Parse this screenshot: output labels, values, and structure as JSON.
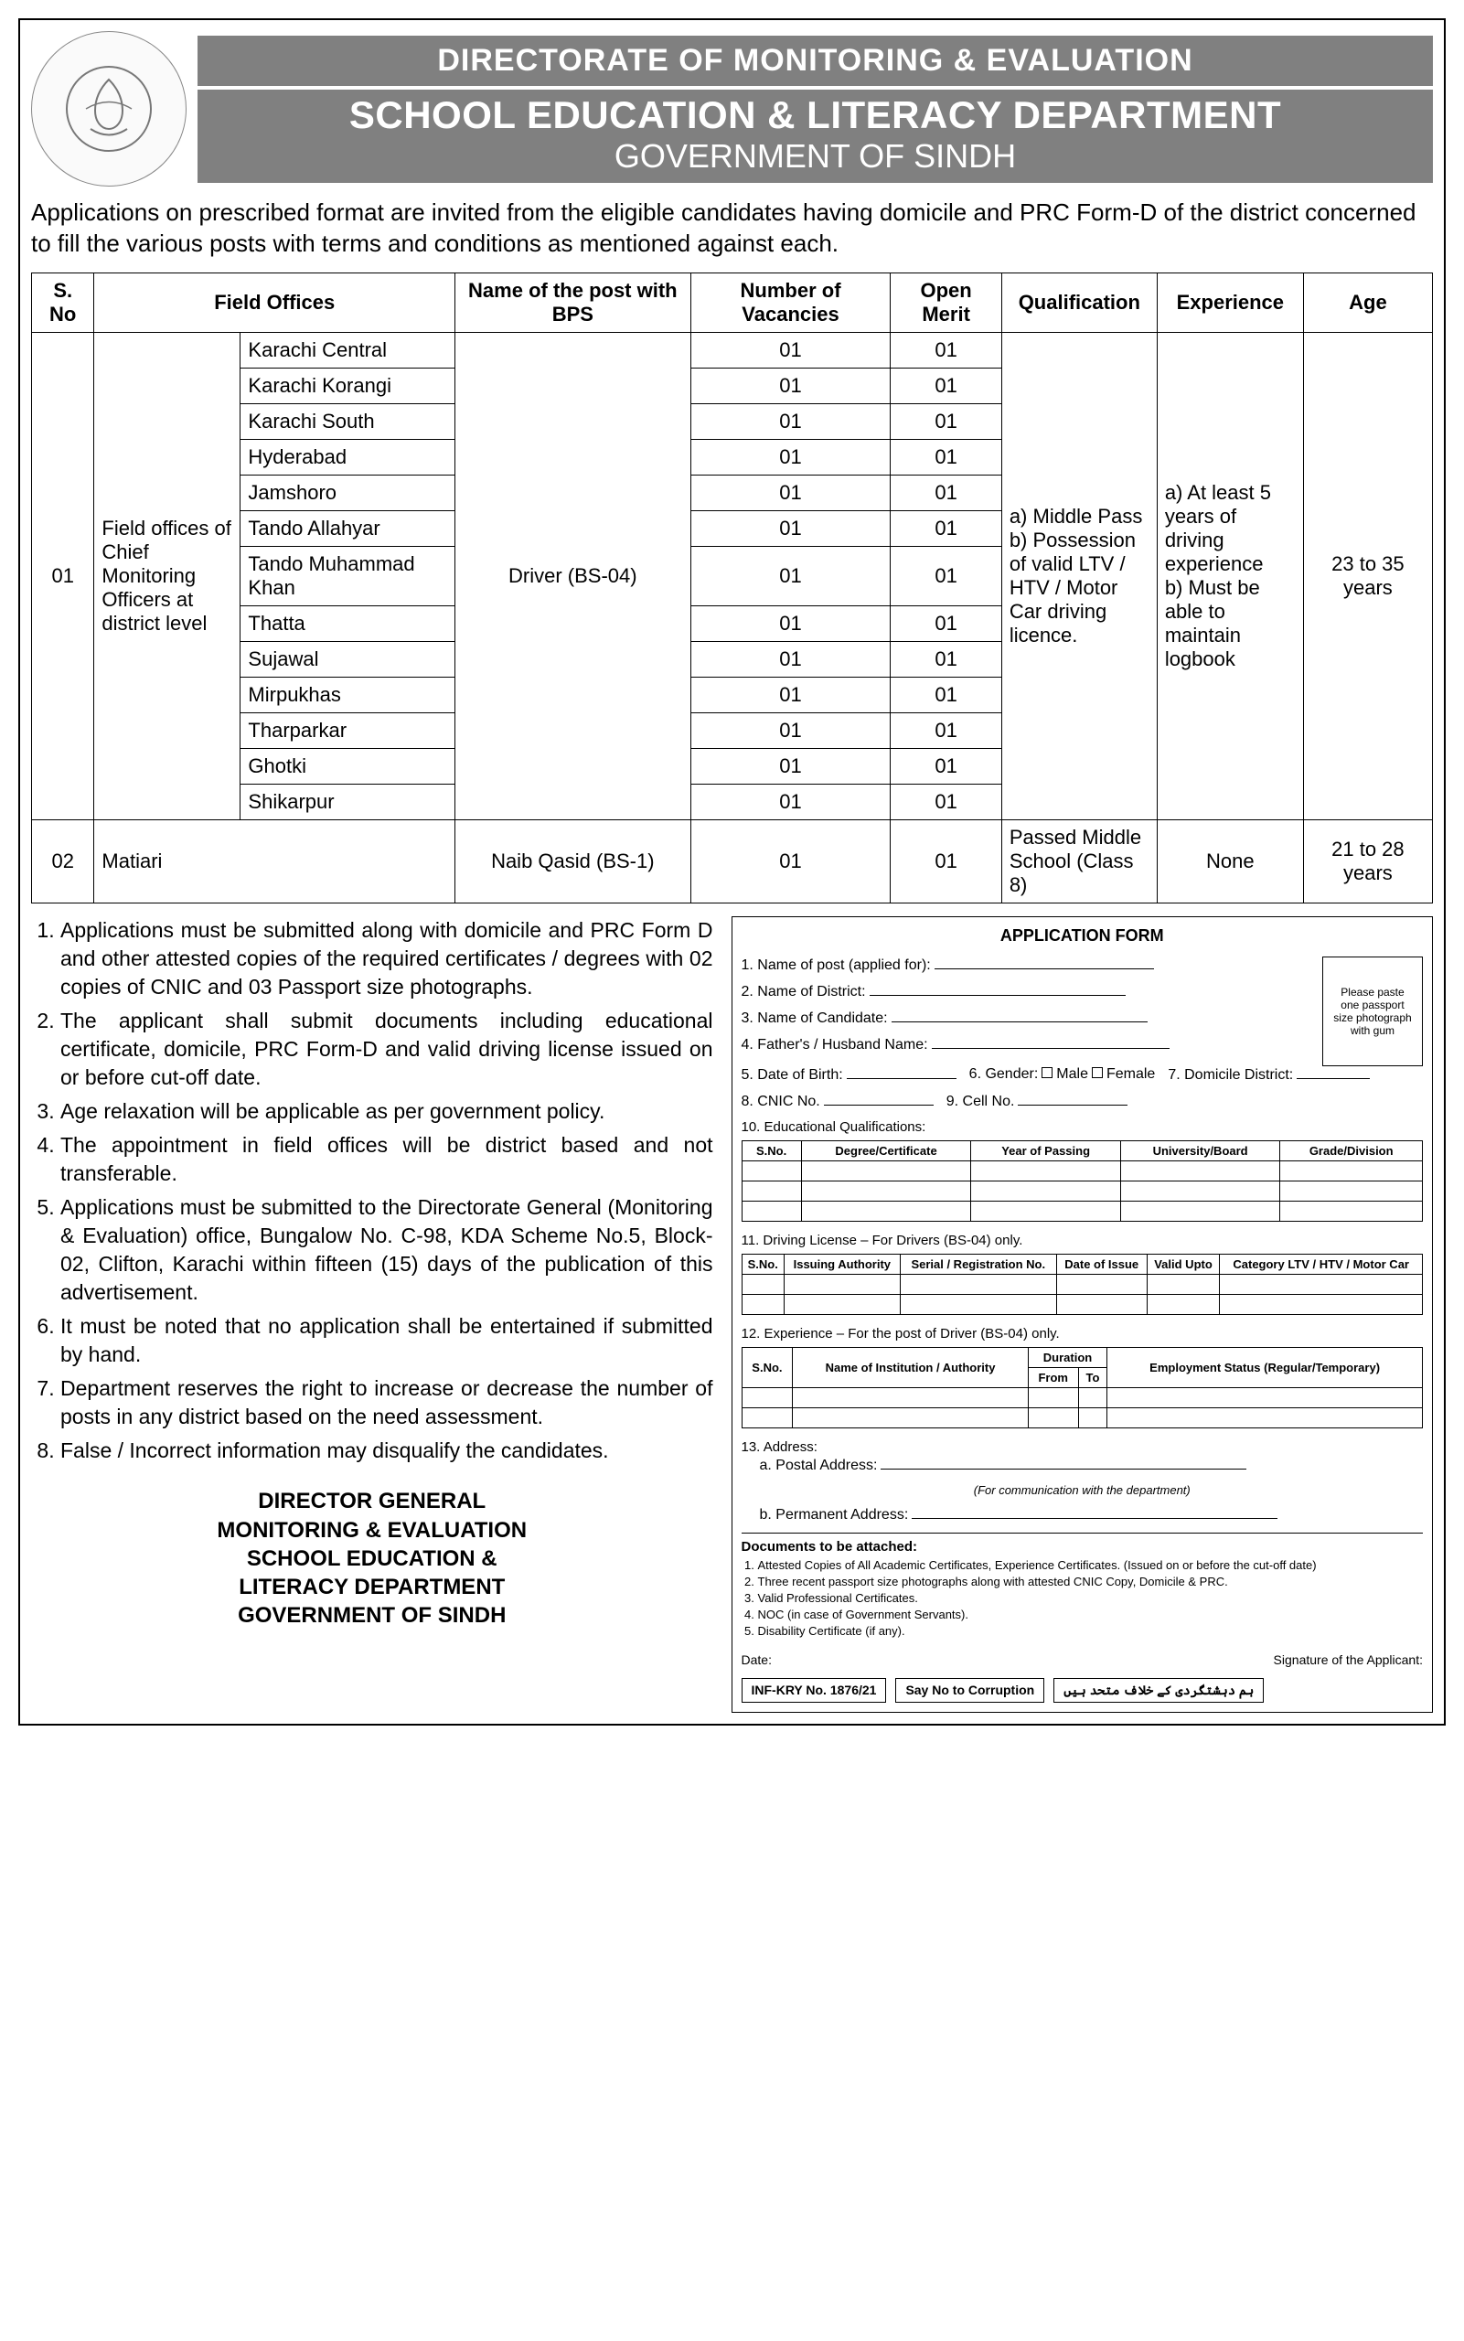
{
  "header": {
    "line1": "DIRECTORATE OF MONITORING & EVALUATION",
    "line2": "SCHOOL EDUCATION & LITERACY DEPARTMENT",
    "line3": "GOVERNMENT OF SINDH"
  },
  "intro": "Applications on prescribed format are invited from the eligible candidates having domicile and PRC Form-D of the district concerned to fill the various posts with terms and conditions as mentioned against each.",
  "table_headers": {
    "sno": "S. No",
    "field_offices": "Field Offices",
    "post": "Name of the post with BPS",
    "vacancies": "Number of Vacancies",
    "merit": "Open Merit",
    "qualification": "Qualification",
    "experience": "Experience",
    "age": "Age"
  },
  "row1": {
    "sno": "01",
    "category": "Field offices of Chief Monitoring Officers at district level",
    "districts": [
      "Karachi Central",
      "Karachi Korangi",
      "Karachi South",
      "Hyderabad",
      "Jamshoro",
      "Tando Allahyar",
      "Tando Muhammad Khan",
      "Thatta",
      "Sujawal",
      "Mirpukhas",
      "Tharparkar",
      "Ghotki",
      "Shikarpur"
    ],
    "post": "Driver (BS-04)",
    "vac": "01",
    "merit": "01",
    "qualification": "a) Middle Pass\nb) Possession of valid LTV / HTV / Motor Car driving licence.",
    "experience": "a) At least 5 years of driving experience\nb) Must be able to maintain logbook",
    "age": "23 to 35 years"
  },
  "row2": {
    "sno": "02",
    "district": "Matiari",
    "post": "Naib Qasid (BS-1)",
    "vac": "01",
    "merit": "01",
    "qualification": "Passed Middle School (Class 8)",
    "experience": "None",
    "age": "21 to 28 years"
  },
  "instructions": [
    "Applications must be submitted along with domicile and PRC Form D and other attested copies of the required certificates / degrees with 02 copies of CNIC and 03 Passport size photographs.",
    "The applicant shall submit documents including educational certificate, domicile, PRC Form-D and valid driving license issued on or before cut-off date.",
    "Age relaxation will be applicable as per government policy.",
    "The appointment in field offices will be district based and not transferable.",
    "Applications must be submitted to the Directorate General (Monitoring & Evaluation) office, Bungalow No. C-98, KDA Scheme No.5, Block-02, Clifton, Karachi within fifteen (15) days of the publication of this advertisement.",
    "It must be noted that no application shall be entertained if submitted by hand.",
    "Department reserves the right to increase or decrease the number of posts in any district based on the need assessment.",
    "False / Incorrect information may disqualify the candidates."
  ],
  "signature": {
    "l1": "DIRECTOR GENERAL",
    "l2": "MONITORING & EVALUATION",
    "l3": "SCHOOL EDUCATION &",
    "l4": "LITERACY DEPARTMENT",
    "l5": "GOVERNMENT OF SINDH"
  },
  "app_form": {
    "title": "APPLICATION FORM",
    "photo_note": "Please paste one passport size photograph with gum",
    "fields": {
      "f1": "1. Name of post (applied for):",
      "f2": "2. Name of District:",
      "f3": "3. Name of Candidate:",
      "f4": "4. Father's / Husband Name:",
      "f5": "5. Date of Birth:",
      "f6": "6. Gender:",
      "male": "Male",
      "female": "Female",
      "f7": "7. Domicile District:",
      "f8": "8. CNIC No.",
      "f9": "9. Cell No.",
      "f10": "10. Educational Qualifications:",
      "f11": "11. Driving License – For Drivers (BS-04) only.",
      "f12": "12. Experience – For the post of Driver (BS-04) only.",
      "f13": "13. Address:",
      "f13a": "a. Postal Address:",
      "f13b": "b. Permanent Address:",
      "comm": "(For communication with the department)"
    },
    "edu_cols": [
      "S.No.",
      "Degree/Certificate",
      "Year of Passing",
      "University/Board",
      "Grade/Division"
    ],
    "lic_cols": [
      "S.No.",
      "Issuing Authority",
      "Serial / Registration No.",
      "Date of Issue",
      "Valid Upto",
      "Category LTV / HTV / Motor Car"
    ],
    "exp_cols": [
      "S.No.",
      "Name of Institution / Authority",
      "From",
      "To",
      "Employment Status (Regular/Temporary)"
    ],
    "exp_header_duration": "Duration",
    "docs_title": "Documents to be attached:",
    "docs": [
      "Attested Copies of All Academic Certificates, Experience Certificates. (Issued on or before the cut-off date)",
      "Three recent passport size photographs along with attested CNIC Copy, Domicile & PRC.",
      "Valid Professional Certificates.",
      "NOC (in case of Government Servants).",
      "Disability Certificate (if any)."
    ],
    "date_label": "Date:",
    "sig_label": "Signature of the Applicant:",
    "bottom1": "INF-KRY No. 1876/21",
    "bottom2": "Say No to Corruption",
    "bottom3": "ہم دہشتگردی کے خلاف متحد ہیں"
  }
}
